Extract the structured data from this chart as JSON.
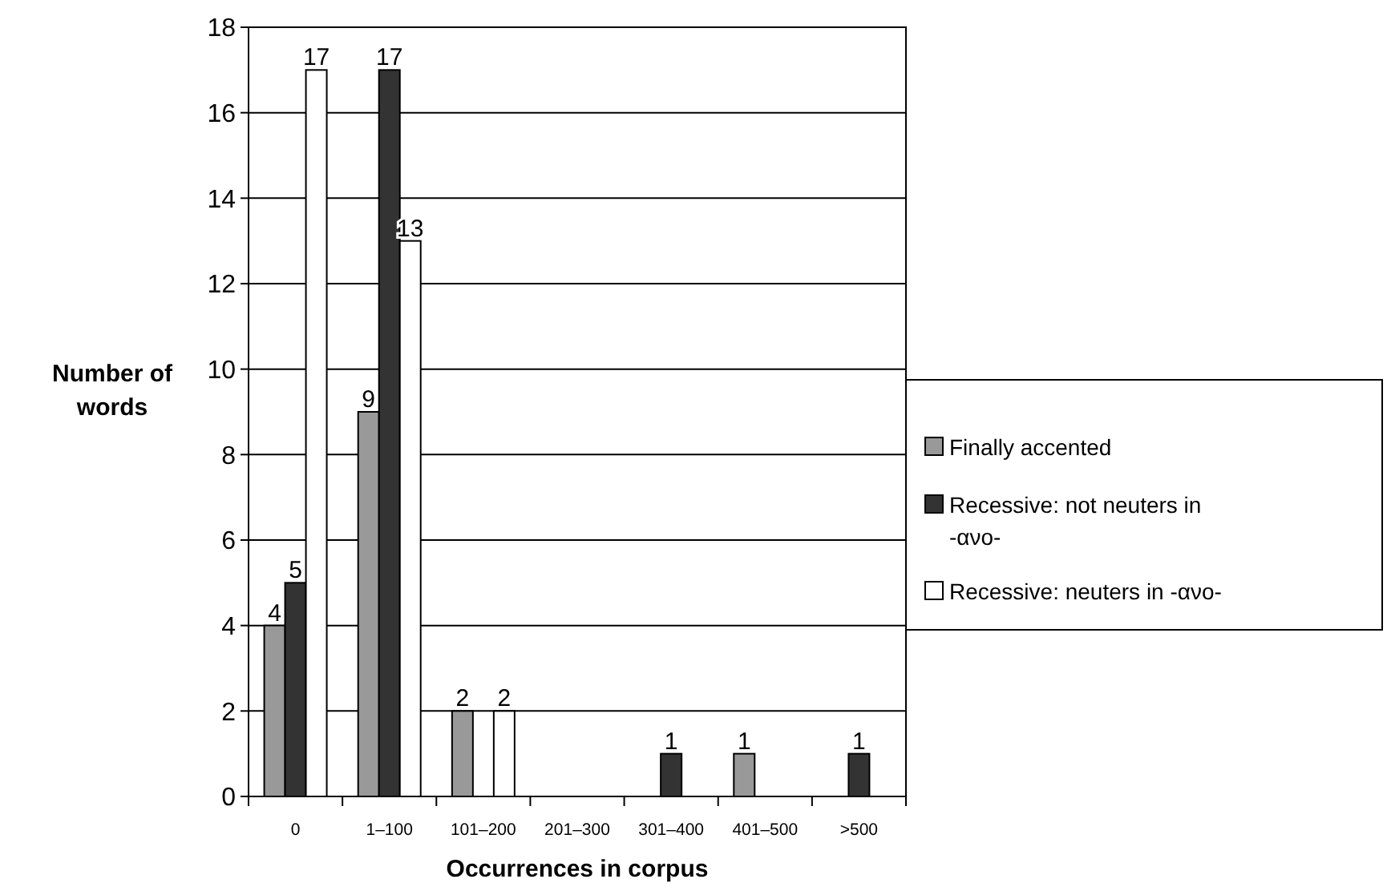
{
  "chart_data": {
    "type": "bar",
    "xlabel": "Occurrences in corpus",
    "ylabel": "Number of words",
    "categories": [
      "0",
      "1–100",
      "101–200",
      "201–300",
      "301–400",
      "401–500",
      ">500"
    ],
    "series": [
      {
        "name": "Finally accented",
        "color": "#999999",
        "values": [
          4,
          9,
          2,
          null,
          null,
          1,
          null
        ]
      },
      {
        "name": "Recessive: not neuters in -ανο-",
        "color": "#333333",
        "values": [
          5,
          17,
          null,
          null,
          1,
          null,
          1
        ]
      },
      {
        "name": "Recessive: neuters in -ανο-",
        "color": "#ffffff",
        "values": [
          17,
          13,
          2,
          null,
          null,
          null,
          null
        ]
      }
    ],
    "ylim": [
      0,
      18
    ],
    "yticks": [
      0,
      2,
      4,
      6,
      8,
      10,
      12,
      14,
      16,
      18
    ],
    "grid": "y",
    "legend": "right",
    "data_labels": true
  }
}
